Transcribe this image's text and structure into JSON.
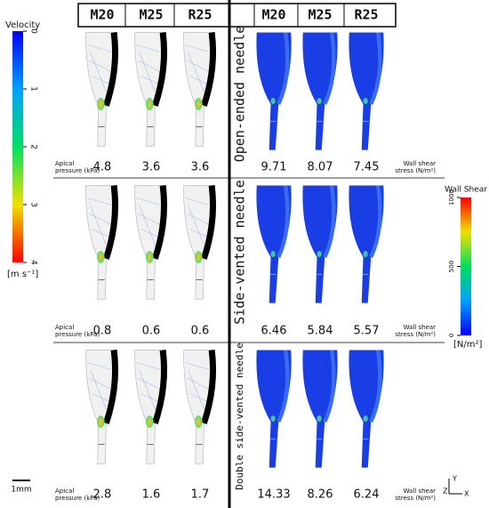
{
  "headers": {
    "left": [
      "M20",
      "M25",
      "R25"
    ],
    "right": [
      "M20",
      "M25",
      "R25"
    ]
  },
  "rows": [
    {
      "label": "Open-ended needle",
      "pressure_label": [
        "Apical",
        "pressure (kPa)"
      ],
      "pressures": [
        4.8,
        3.6,
        3.6
      ],
      "shear_label": [
        "Wall shear",
        "stress (N/m²)"
      ],
      "shears": [
        9.71,
        8.07,
        7.45
      ]
    },
    {
      "label": "Side-vented needle",
      "pressure_label": [
        "Apical",
        "pressure (kPa)"
      ],
      "pressures": [
        0.8,
        0.6,
        0.6
      ],
      "shear_label": [
        "Wall shear",
        "stress (N/m²)"
      ],
      "shears": [
        6.46,
        5.84,
        5.57
      ]
    },
    {
      "label": "Double side-vented needle",
      "pressure_label": [
        "Apical",
        "pressure (kPa)"
      ],
      "pressures": [
        2.8,
        1.6,
        1.7
      ],
      "shear_label": [
        "Wall shear",
        "stress (N/m²)"
      ],
      "shears": [
        14.33,
        8.26,
        6.24
      ]
    }
  ],
  "velocity_legend": {
    "title": "Velocity",
    "ticks": [
      0,
      1,
      2,
      3,
      4
    ],
    "unit": "[m s⁻¹]"
  },
  "shear_legend": {
    "title": "Wall Shear",
    "ticks": [
      1000,
      500,
      0
    ],
    "unit": "[N/m²]"
  },
  "scale_bar": "1mm",
  "axes": [
    "Y",
    "Z",
    "X"
  ]
}
